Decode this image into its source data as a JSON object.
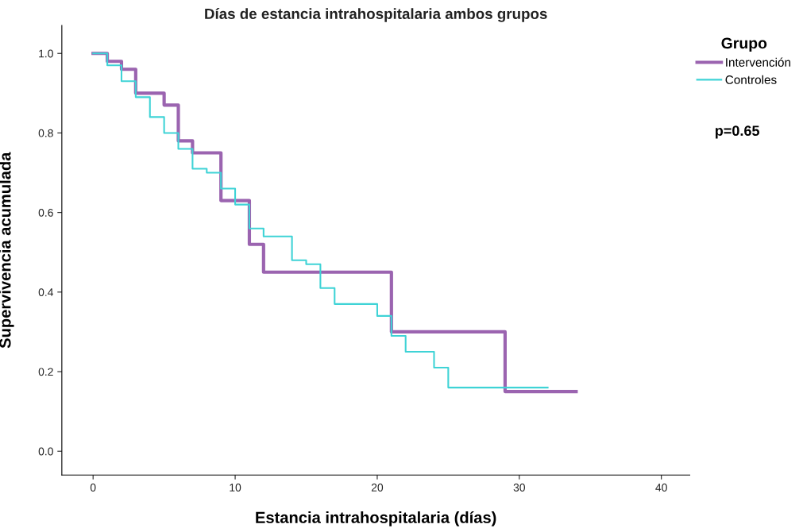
{
  "chart_data": {
    "type": "step",
    "title": "Días de estancia intrahospitalaria ambos grupos",
    "xlabel": "Estancia intrahospitalaria (días)",
    "ylabel": "Supervivencia acumulada",
    "legend_title": "Grupo",
    "series": [
      {
        "name": "Intervención",
        "color": "#9b64b0",
        "x": [
          0,
          1,
          2,
          3,
          5,
          6,
          7,
          9,
          11,
          12,
          21,
          29,
          34
        ],
        "values": [
          1.0,
          0.98,
          0.96,
          0.9,
          0.87,
          0.78,
          0.75,
          0.63,
          0.52,
          0.45,
          0.3,
          0.15,
          0.15
        ]
      },
      {
        "name": "Controles",
        "color": "#3fd3d6",
        "x": [
          0,
          1,
          2,
          3,
          4,
          5,
          6,
          7,
          8,
          9,
          10,
          11,
          12,
          14,
          15,
          16,
          17,
          20,
          21,
          22,
          24,
          25,
          32
        ],
        "values": [
          1.0,
          0.97,
          0.93,
          0.89,
          0.84,
          0.8,
          0.76,
          0.71,
          0.7,
          0.66,
          0.62,
          0.56,
          0.54,
          0.48,
          0.47,
          0.41,
          0.37,
          0.34,
          0.29,
          0.25,
          0.21,
          0.16,
          0.16
        ]
      }
    ],
    "xlim": [
      -2.2,
      42
    ],
    "xticks": [
      0,
      10,
      20,
      30,
      40
    ],
    "ylim": [
      -0.06,
      1.07
    ],
    "yticks": [
      {
        "value": 0,
        "label": "0.0"
      },
      {
        "value": 0.2,
        "label": "0.2"
      },
      {
        "value": 0.4,
        "label": "0.4"
      },
      {
        "value": 0.6,
        "label": "0.6"
      },
      {
        "value": 0.8,
        "label": "0.8"
      },
      {
        "value": 1,
        "label": "1.0"
      }
    ],
    "annotations": [
      "p=0.65"
    ],
    "legend": "top right",
    "grid": false
  }
}
